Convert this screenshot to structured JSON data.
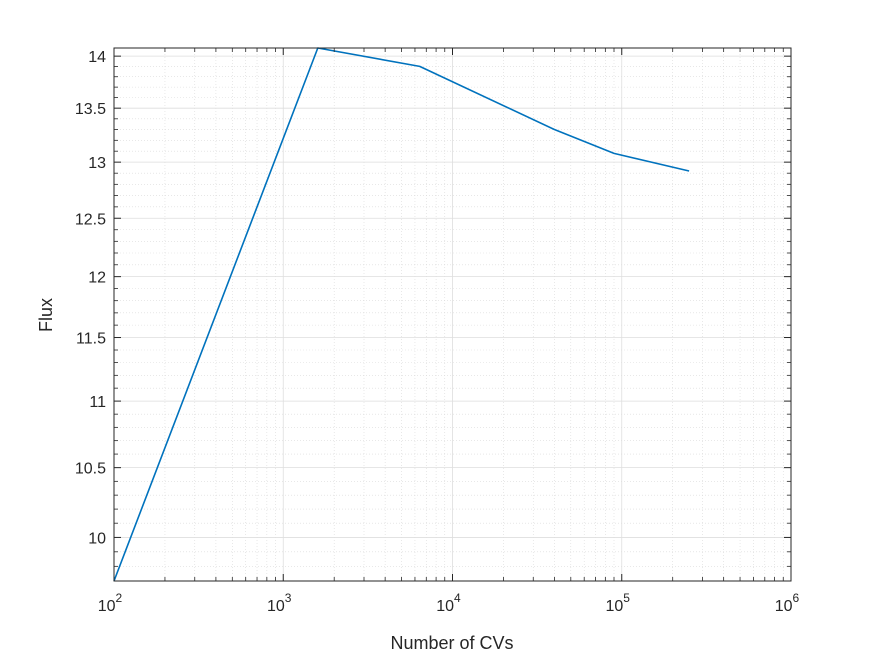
{
  "chart_data": {
    "type": "line",
    "xlabel": "Number of CVs",
    "ylabel": "Flux",
    "xscale": "log",
    "yscale": "log",
    "xlim": [
      100,
      1000000
    ],
    "ylim": [
      9.7,
      14.08
    ],
    "grid": true,
    "minor_grid": true,
    "line_color": "#0072BD",
    "x_ticks": [
      {
        "base": "10",
        "exp": "2",
        "value": 100
      },
      {
        "base": "10",
        "exp": "3",
        "value": 1000
      },
      {
        "base": "10",
        "exp": "4",
        "value": 10000
      },
      {
        "base": "10",
        "exp": "5",
        "value": 100000
      },
      {
        "base": "10",
        "exp": "6",
        "value": 1000000
      }
    ],
    "y_ticks": [
      "10",
      "10.5",
      "11",
      "11.5",
      "12",
      "12.5",
      "13",
      "13.5",
      "14"
    ],
    "series": [
      {
        "x": [
          100,
          1600,
          6400,
          40000,
          90000,
          250000
        ],
        "y": [
          9.7,
          14.08,
          13.9,
          13.3,
          13.08,
          12.92
        ]
      }
    ]
  }
}
